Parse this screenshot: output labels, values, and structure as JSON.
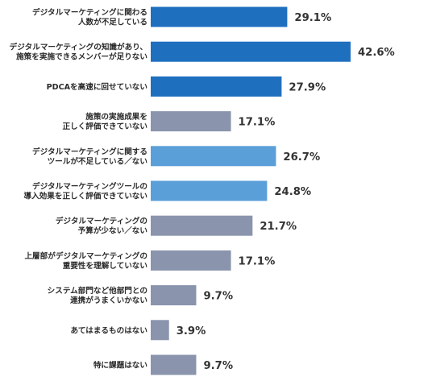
{
  "chart_data": {
    "type": "bar",
    "orientation": "horizontal",
    "title": "",
    "xlabel": "",
    "ylabel": "",
    "xlim": [
      0,
      45
    ],
    "grid": false,
    "value_suffix": "%",
    "categories": [
      [
        "デジタルマーケティングに関わる",
        "人数が不足している"
      ],
      [
        "デジタルマーケティングの知識があり、",
        "施策を実施できるメンバーが足りない"
      ],
      [
        "PDCAを高速に回せていない"
      ],
      [
        "施策の実施成果を",
        "正しく評価できていない"
      ],
      [
        "デジタルマーケティングに関する",
        "ツールが不足している／ない"
      ],
      [
        "デジタルマーケティングツールの",
        "導入効果を正しく評価できていない"
      ],
      [
        "デジタルマーケティングの",
        "予算が少ない／ない"
      ],
      [
        "上層部がデジタルマーケティングの",
        "重要性を理解していない"
      ],
      [
        "システム部門など他部門との",
        "連携がうまくいかない"
      ],
      [
        "あてはまるものはない"
      ],
      [
        "特に課題はない"
      ]
    ],
    "values": [
      29.1,
      42.6,
      27.9,
      17.1,
      26.7,
      24.8,
      21.7,
      17.1,
      9.7,
      3.9,
      9.7
    ],
    "value_labels": [
      "29.1%",
      "42.6%",
      "27.9%",
      "17.1%",
      "26.7%",
      "24.8%",
      "21.7%",
      "17.1%",
      "9.7%",
      "3.9%",
      "9.7%"
    ],
    "color_groups": [
      "dark",
      "dark",
      "dark",
      "gray",
      "light",
      "light",
      "gray",
      "gray",
      "gray",
      "gray",
      "gray"
    ]
  },
  "colors": {
    "dark": "#1f6fbf",
    "light": "#5a9fd8",
    "gray": "#8a94ad",
    "label_text": "#2b2b2b",
    "value_text": "#333333"
  }
}
